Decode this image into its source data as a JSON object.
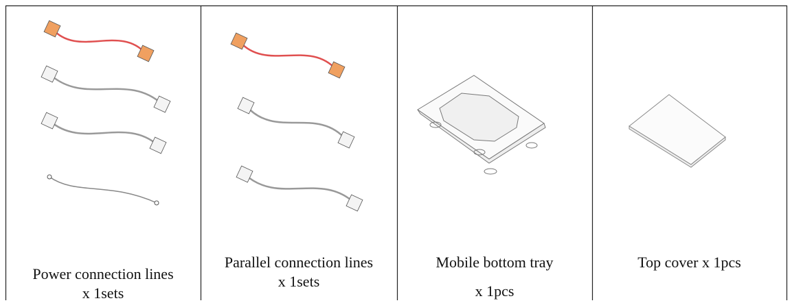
{
  "table": {
    "cells": [
      {
        "lines": [
          "Power connection lines",
          "x 1sets"
        ]
      },
      {
        "lines": [
          "Parallel connection lines",
          "x 1sets"
        ]
      },
      {
        "lines": [
          "Mobile bottom tray",
          "x 1pcs"
        ]
      },
      {
        "lines": [
          "Top cover x 1pcs"
        ]
      }
    ]
  }
}
